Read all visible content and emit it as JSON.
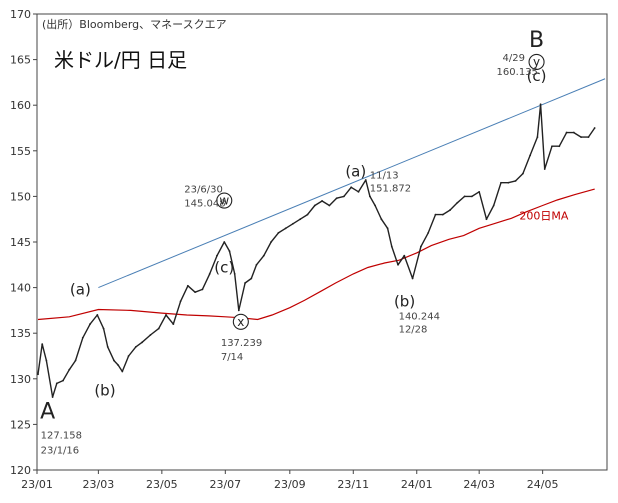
{
  "header": {
    "source": "(出所）Bloomberg、マネースクエア",
    "title": "米ドル/円 日足"
  },
  "chart_data": {
    "type": "line",
    "title": "米ドル/円 日足",
    "ylim": [
      120,
      170
    ],
    "yticks": [
      120,
      125,
      130,
      135,
      140,
      145,
      150,
      155,
      160,
      165,
      170
    ],
    "xlim": [
      "2023-01-01",
      "2024-06-20"
    ],
    "xticks": [
      {
        "date": "2023-01-01",
        "label": "23/01"
      },
      {
        "date": "2023-03-01",
        "label": "23/03"
      },
      {
        "date": "2023-05-01",
        "label": "23/05"
      },
      {
        "date": "2023-07-01",
        "label": "23/07"
      },
      {
        "date": "2023-09-01",
        "label": "23/09"
      },
      {
        "date": "2023-11-01",
        "label": "23/11"
      },
      {
        "date": "2024-01-01",
        "label": "24/01"
      },
      {
        "date": "2024-03-01",
        "label": "24/03"
      },
      {
        "date": "2024-05-01",
        "label": "24/05"
      }
    ],
    "grid": false,
    "colors": {
      "price": "#222222",
      "ma": "#c00000",
      "trend": "#4a7fb5"
    },
    "series": [
      {
        "name": "",
        "x": [
          "2023-01-02",
          "2023-01-06",
          "2023-01-10",
          "2023-01-16",
          "2023-01-20",
          "2023-01-26",
          "2023-02-01",
          "2023-02-07",
          "2023-02-14",
          "2023-02-21",
          "2023-02-28",
          "2023-03-06",
          "2023-03-10",
          "2023-03-16",
          "2023-03-20",
          "2023-03-24",
          "2023-03-30",
          "2023-04-06",
          "2023-04-12",
          "2023-04-20",
          "2023-04-28",
          "2023-05-05",
          "2023-05-12",
          "2023-05-19",
          "2023-05-26",
          "2023-06-02",
          "2023-06-09",
          "2023-06-16",
          "2023-06-23",
          "2023-06-30",
          "2023-07-05",
          "2023-07-10",
          "2023-07-14",
          "2023-07-20",
          "2023-07-26",
          "2023-07-31",
          "2023-08-07",
          "2023-08-14",
          "2023-08-21",
          "2023-08-28",
          "2023-09-04",
          "2023-09-11",
          "2023-09-18",
          "2023-09-25",
          "2023-10-02",
          "2023-10-09",
          "2023-10-16",
          "2023-10-23",
          "2023-10-30",
          "2023-11-06",
          "2023-11-13",
          "2023-11-17",
          "2023-11-22",
          "2023-11-28",
          "2023-12-04",
          "2023-12-08",
          "2023-12-14",
          "2023-12-20",
          "2023-12-28",
          "2024-01-05",
          "2024-01-12",
          "2024-01-19",
          "2024-01-26",
          "2024-02-02",
          "2024-02-09",
          "2024-02-16",
          "2024-02-23",
          "2024-03-01",
          "2024-03-08",
          "2024-03-15",
          "2024-03-22",
          "2024-03-29",
          "2024-04-05",
          "2024-04-12",
          "2024-04-19",
          "2024-04-26",
          "2024-04-29",
          "2024-05-03",
          "2024-05-10",
          "2024-05-17",
          "2024-05-24",
          "2024-05-31",
          "2024-06-07",
          "2024-06-14",
          "2024-06-20"
        ],
        "values": [
          130.5,
          133.8,
          132.0,
          128.0,
          129.5,
          129.8,
          131.0,
          132.0,
          134.5,
          136.0,
          137.0,
          135.5,
          133.5,
          132.0,
          131.5,
          130.8,
          132.5,
          133.5,
          134.0,
          134.8,
          135.5,
          137.0,
          136.0,
          138.5,
          140.2,
          139.5,
          139.8,
          141.5,
          143.5,
          145.0,
          144.0,
          141.5,
          137.5,
          140.5,
          141.0,
          142.5,
          143.5,
          145.0,
          146.0,
          146.5,
          147.0,
          147.5,
          148.0,
          149.0,
          149.5,
          149.0,
          149.8,
          150.0,
          151.0,
          150.5,
          151.8,
          150.0,
          149.0,
          147.5,
          146.5,
          144.5,
          142.5,
          143.5,
          141.0,
          144.5,
          146.0,
          148.0,
          148.0,
          148.5,
          149.3,
          150.0,
          150.0,
          150.5,
          147.5,
          149.0,
          151.5,
          151.5,
          151.7,
          152.5,
          154.5,
          156.5,
          160.1,
          153.0,
          155.5,
          155.5,
          157.0,
          157.0,
          156.5,
          156.5,
          157.5
        ]
      },
      {
        "name": "200日MA",
        "x": [
          "2023-01-02",
          "2023-02-01",
          "2023-03-01",
          "2023-04-01",
          "2023-05-01",
          "2023-05-25",
          "2023-06-15",
          "2023-07-01",
          "2023-07-15",
          "2023-08-01",
          "2023-08-15",
          "2023-09-01",
          "2023-09-15",
          "2023-10-01",
          "2023-10-15",
          "2023-11-01",
          "2023-11-15",
          "2023-12-01",
          "2023-12-15",
          "2024-01-01",
          "2024-01-15",
          "2024-02-01",
          "2024-02-15",
          "2024-03-01",
          "2024-03-15",
          "2024-04-01",
          "2024-04-15",
          "2024-05-01",
          "2024-05-15",
          "2024-06-01",
          "2024-06-20"
        ],
        "values": [
          136.5,
          136.8,
          137.6,
          137.5,
          137.2,
          137.0,
          136.9,
          136.8,
          136.7,
          136.5,
          137.0,
          137.8,
          138.6,
          139.6,
          140.5,
          141.5,
          142.2,
          142.7,
          143.0,
          143.8,
          144.6,
          145.3,
          145.7,
          146.5,
          147.0,
          147.6,
          148.3,
          149.0,
          149.6,
          150.2,
          150.8
        ]
      }
    ],
    "trendline": {
      "from": {
        "date": "2023-03-01",
        "value": 140.0
      },
      "to": {
        "date": "2024-06-30",
        "value": 162.9
      }
    },
    "annotations": [
      {
        "id": "A",
        "text": "A",
        "date": "2023-01-16",
        "value": 127.158,
        "style": "big"
      },
      {
        "id": "A-value",
        "text": "127.158",
        "date": "2023-01-16",
        "value": 127.158,
        "style": "ann"
      },
      {
        "id": "A-date",
        "text": "23/1/16",
        "date": "2023-01-16",
        "value": 127.158,
        "style": "ann"
      },
      {
        "id": "a1",
        "text": "(a)",
        "date": "2023-03-01",
        "value": 137.5,
        "style": "wave"
      },
      {
        "id": "b1",
        "text": "(b)",
        "date": "2023-03-15",
        "value": 131.0,
        "style": "wave"
      },
      {
        "id": "c1",
        "text": "(c)",
        "date": "2023-06-30",
        "value": 145.048,
        "style": "wave"
      },
      {
        "id": "w",
        "text": "w",
        "date": "2023-06-30",
        "value": 145.048,
        "style": "circle"
      },
      {
        "id": "c1-date",
        "text": "23/6/30",
        "date": "2023-06-30",
        "value": 145.048,
        "style": "ann"
      },
      {
        "id": "c1-value",
        "text": "145.048",
        "date": "2023-06-30",
        "value": 145.048,
        "style": "ann"
      },
      {
        "id": "x",
        "text": "x",
        "date": "2023-07-14",
        "value": 137.239,
        "style": "circle"
      },
      {
        "id": "x-value",
        "text": "137.239",
        "date": "2023-07-14",
        "value": 137.239,
        "style": "ann"
      },
      {
        "id": "x-date",
        "text": "7/14",
        "date": "2023-07-14",
        "value": 137.239,
        "style": "ann"
      },
      {
        "id": "a2",
        "text": "(a)",
        "date": "2023-11-13",
        "value": 151.872,
        "style": "wave"
      },
      {
        "id": "a2-date",
        "text": "11/13",
        "date": "2023-11-13",
        "value": 151.872,
        "style": "ann"
      },
      {
        "id": "a2-value",
        "text": "151.872",
        "date": "2023-11-13",
        "value": 151.872,
        "style": "ann"
      },
      {
        "id": "b2",
        "text": "(b)",
        "date": "2023-12-28",
        "value": 140.244,
        "style": "wave"
      },
      {
        "id": "b2-value",
        "text": "140.244",
        "date": "2023-12-28",
        "value": 140.244,
        "style": "ann"
      },
      {
        "id": "b2-date",
        "text": "12/28",
        "date": "2023-12-28",
        "value": 140.244,
        "style": "ann"
      },
      {
        "id": "B",
        "text": "B",
        "date": "2024-04-29",
        "value": 160.135,
        "style": "big"
      },
      {
        "id": "y",
        "text": "y",
        "date": "2024-04-29",
        "value": 160.135,
        "style": "circle"
      },
      {
        "id": "c2",
        "text": "(c)",
        "date": "2024-04-29",
        "value": 160.135,
        "style": "wave"
      },
      {
        "id": "c2-date",
        "text": "4/29",
        "date": "2024-04-29",
        "value": 160.135,
        "style": "ann"
      },
      {
        "id": "c2-value",
        "text": "160.135",
        "date": "2024-04-29",
        "value": 160.135,
        "style": "ann"
      },
      {
        "id": "ma-label",
        "text": "200日MA",
        "date": "2024-04-01",
        "value": 147.6,
        "style": "ma"
      }
    ]
  }
}
